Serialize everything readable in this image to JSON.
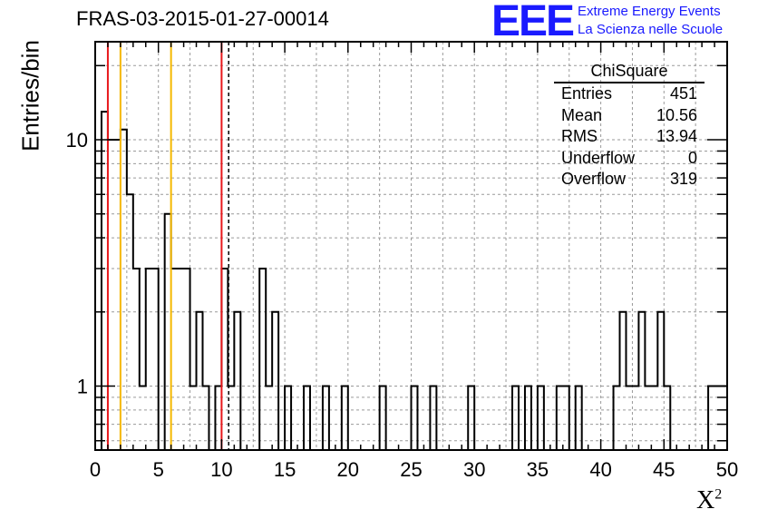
{
  "header": {
    "title": "FRAS-03-2015-01-27-00014",
    "logo_text": "EEE",
    "logo_line1": "Extreme Energy Events",
    "logo_line2": "La Scienza nelle Scuole"
  },
  "stats_box": {
    "title": "ChiSquare",
    "rows": [
      {
        "label": "Entries",
        "value": "451"
      },
      {
        "label": "Mean",
        "value": "10.56"
      },
      {
        "label": "RMS",
        "value": "13.94"
      },
      {
        "label": "Underflow",
        "value": "0"
      },
      {
        "label": "Overflow",
        "value": "319"
      }
    ]
  },
  "colors": {
    "red_line": "#e8181c",
    "yellow_line": "#f5b800",
    "logo": "#1a1aff",
    "hist": "#000000"
  },
  "chart_data": {
    "type": "histogram",
    "title": "FRAS-03-2015-01-27-00014",
    "xlabel": "X",
    "xlabel_sup": "2",
    "ylabel": "Entries/bin",
    "xlim": [
      0,
      50
    ],
    "ylim": [
      0.55,
      25
    ],
    "y_scale": "log",
    "grid": true,
    "x_ticks": [
      0,
      5,
      10,
      15,
      20,
      25,
      30,
      35,
      40,
      45,
      50
    ],
    "x_tick_labels": [
      "0",
      "5",
      "10",
      "15",
      "20",
      "25",
      "30",
      "35",
      "40",
      "45",
      "50"
    ],
    "y_ticks": [
      1,
      10
    ],
    "y_tick_labels": [
      "1",
      "10"
    ],
    "bin_width": 0.5,
    "bins": [
      [
        0.5,
        13
      ],
      [
        1.0,
        10
      ],
      [
        1.5,
        10
      ],
      [
        2.0,
        11
      ],
      [
        2.5,
        6
      ],
      [
        3.0,
        3
      ],
      [
        3.5,
        1
      ],
      [
        4.0,
        3
      ],
      [
        4.5,
        3
      ],
      [
        5.5,
        5
      ],
      [
        6.0,
        3
      ],
      [
        6.5,
        3
      ],
      [
        7.0,
        3
      ],
      [
        7.5,
        1
      ],
      [
        8.0,
        2
      ],
      [
        8.5,
        1
      ],
      [
        9.5,
        1
      ],
      [
        10.0,
        3
      ],
      [
        10.5,
        1
      ],
      [
        11.0,
        2
      ],
      [
        13.0,
        3
      ],
      [
        13.5,
        1
      ],
      [
        14.0,
        2
      ],
      [
        15.0,
        1
      ],
      [
        16.5,
        1
      ],
      [
        18.0,
        1
      ],
      [
        19.5,
        1
      ],
      [
        22.5,
        1
      ],
      [
        25.0,
        1
      ],
      [
        26.5,
        1
      ],
      [
        29.5,
        1
      ],
      [
        33.0,
        1
      ],
      [
        34.0,
        1
      ],
      [
        35.0,
        1
      ],
      [
        36.5,
        1
      ],
      [
        37.0,
        1
      ],
      [
        38.0,
        1
      ],
      [
        41.0,
        1
      ],
      [
        41.5,
        2
      ],
      [
        42.0,
        1
      ],
      [
        42.5,
        1
      ],
      [
        43.0,
        2
      ],
      [
        43.5,
        1
      ],
      [
        44.0,
        1
      ],
      [
        44.5,
        2
      ],
      [
        45.0,
        1
      ],
      [
        48.5,
        1
      ],
      [
        49.0,
        1
      ],
      [
        49.5,
        1
      ]
    ],
    "vertical_lines": [
      {
        "x": 1.0,
        "color": "red"
      },
      {
        "x": 2.0,
        "color": "yellow"
      },
      {
        "x": 6.0,
        "color": "yellow"
      },
      {
        "x": 10.0,
        "color": "red"
      },
      {
        "x": 10.56,
        "style": "dashed",
        "color": "black"
      }
    ]
  }
}
